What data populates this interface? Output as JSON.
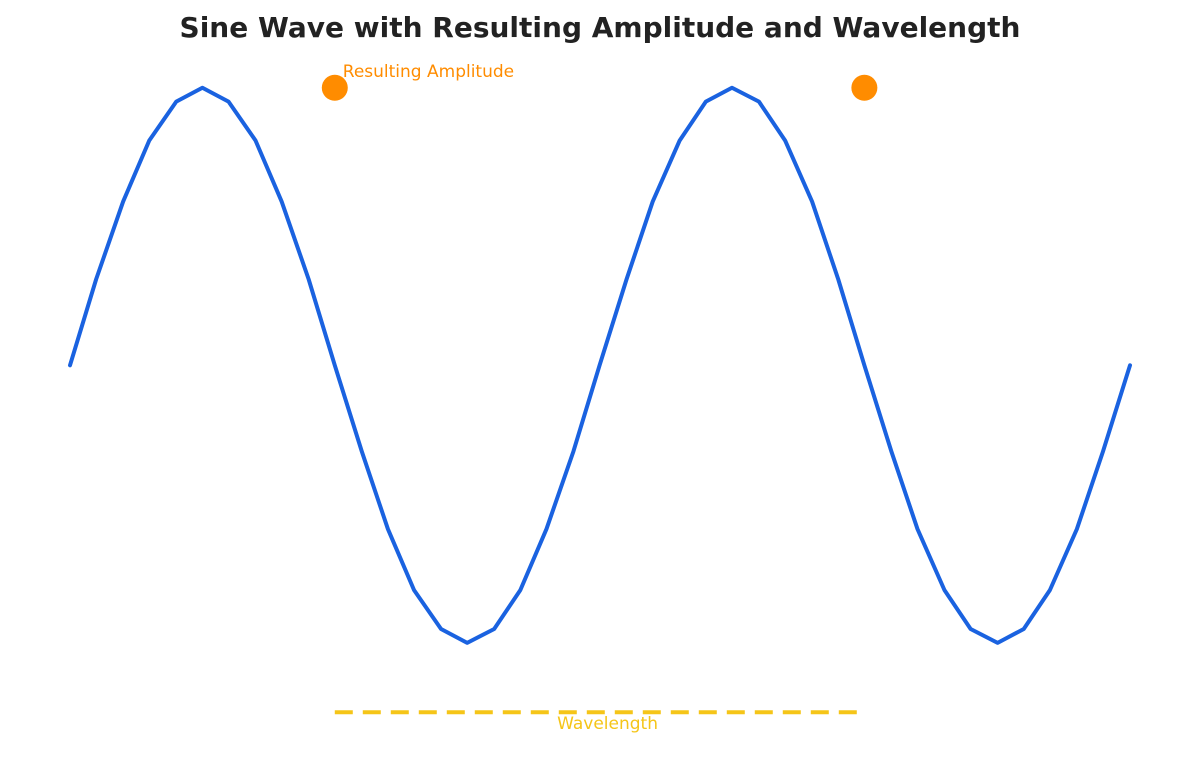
{
  "chart_data": {
    "type": "line",
    "title": "Sine Wave with Resulting Amplitude and Wavelength",
    "x": [
      0,
      0.31,
      0.63,
      0.94,
      1.26,
      1.57,
      1.88,
      2.2,
      2.51,
      2.83,
      3.14,
      3.46,
      3.77,
      4.08,
      4.4,
      4.71,
      5.03,
      5.34,
      5.65,
      5.97,
      6.28,
      6.6,
      6.91,
      7.23,
      7.54,
      7.85,
      8.17,
      8.48,
      8.8,
      9.11,
      9.42,
      9.74,
      10.05,
      10.37,
      10.68,
      11.0,
      11.31,
      11.62,
      11.94,
      12.25,
      12.57
    ],
    "values": [
      0,
      0.31,
      0.59,
      0.81,
      0.95,
      1,
      0.95,
      0.81,
      0.59,
      0.31,
      0,
      -0.31,
      -0.59,
      -0.81,
      -0.95,
      -1,
      -0.95,
      -0.81,
      -0.59,
      -0.31,
      0,
      0.31,
      0.59,
      0.81,
      0.95,
      1,
      0.95,
      0.81,
      0.59,
      0.31,
      0,
      -0.31,
      -0.59,
      -0.81,
      -0.95,
      -1,
      -0.95,
      -0.81,
      -0.59,
      -0.31,
      0
    ],
    "color": "#1a62e0",
    "points": {
      "x": [
        3.14,
        9.42
      ],
      "values": [
        1,
        1
      ],
      "color": "#ff8c00",
      "label": "Resulting Amplitude"
    },
    "wavelength": {
      "x": [
        3.14,
        9.42
      ],
      "value": -1.25,
      "color": "#f5c518",
      "label": "Wavelength"
    },
    "xlim": [
      0,
      12.57
    ],
    "ylim": [
      -1.35,
      1.1
    ]
  }
}
